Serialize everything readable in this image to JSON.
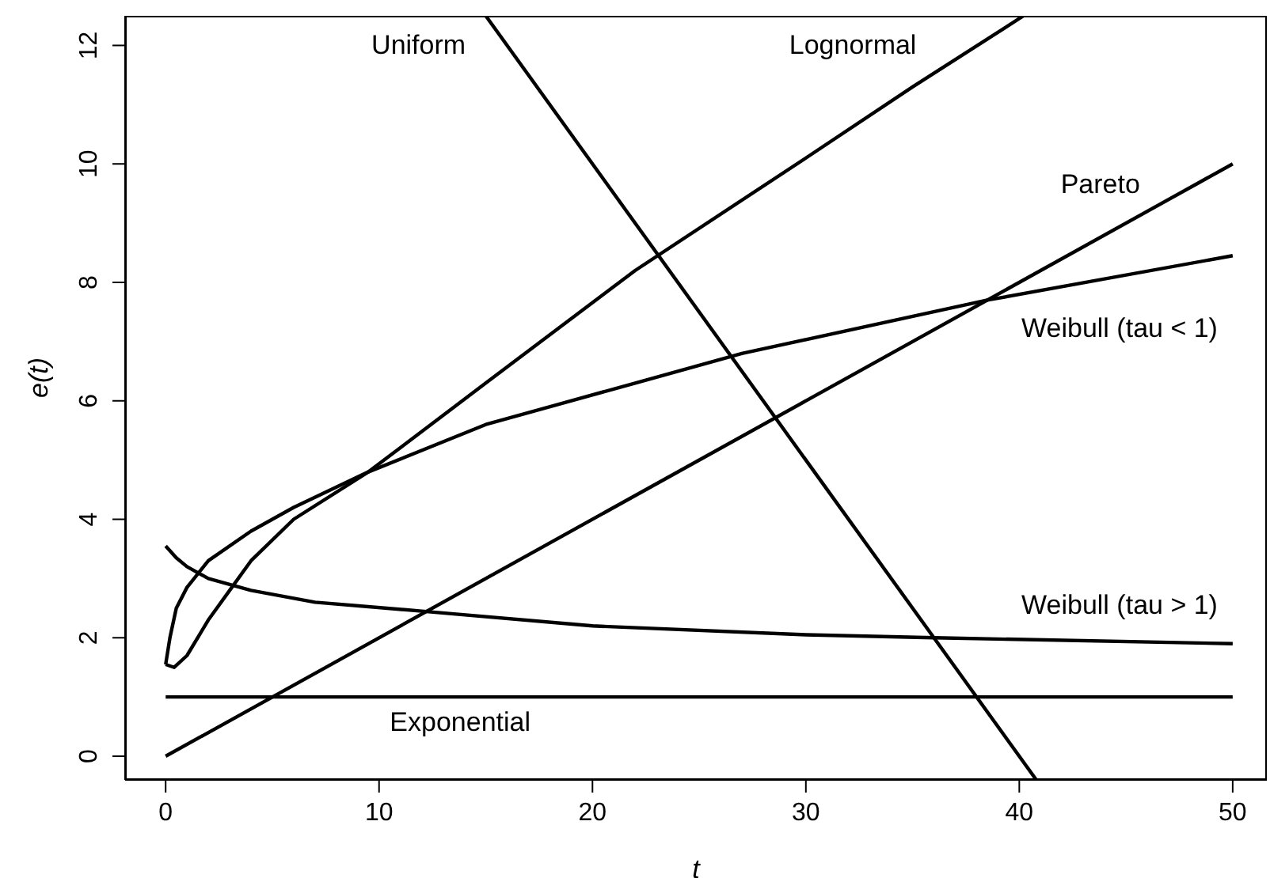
{
  "chart_data": {
    "type": "line",
    "xlabel": "t",
    "ylabel": "e(t)",
    "xlim": [
      -1.9,
      51.6
    ],
    "ylim": [
      -0.4,
      12.5
    ],
    "xticks": [
      0,
      10,
      20,
      30,
      40,
      50
    ],
    "yticks": [
      0,
      2,
      4,
      6,
      8,
      10,
      12
    ],
    "marker": "none",
    "line_style": "solid",
    "series": [
      {
        "name": "Exponential",
        "color": "#000000",
        "x": [
          0,
          50
        ],
        "values": [
          1,
          1
        ]
      },
      {
        "name": "Pareto",
        "color": "#000000",
        "x": [
          0,
          50
        ],
        "values": [
          0,
          10
        ]
      },
      {
        "name": "Uniform",
        "color": "#000000",
        "x": [
          15,
          40.8
        ],
        "values": [
          12.5,
          -0.4
        ]
      },
      {
        "name": "Lognormal",
        "color": "#000000",
        "x": [
          0,
          0.4,
          1,
          2,
          3,
          4,
          6,
          9.5,
          15,
          22,
          30,
          35,
          40.2
        ],
        "values": [
          1.55,
          1.5,
          1.7,
          2.3,
          2.8,
          3.3,
          4.0,
          4.8,
          6.3,
          8.2,
          10.1,
          11.3,
          12.5
        ]
      },
      {
        "name": "Weibull (tau < 1)",
        "color": "#000000",
        "x": [
          0,
          0.2,
          0.5,
          1,
          2,
          4,
          6,
          9.5,
          15,
          22,
          27,
          38.5,
          50
        ],
        "values": [
          1.55,
          2.0,
          2.5,
          2.85,
          3.3,
          3.8,
          4.2,
          4.8,
          5.6,
          6.3,
          6.8,
          7.7,
          8.45
        ]
      },
      {
        "name": "Weibull (tau > 1)",
        "color": "#000000",
        "x": [
          0,
          0.5,
          1,
          2,
          4,
          7,
          12,
          20,
          30,
          36,
          50
        ],
        "values": [
          3.55,
          3.35,
          3.2,
          3.0,
          2.8,
          2.6,
          2.45,
          2.2,
          2.05,
          2.0,
          1.9
        ]
      }
    ]
  }
}
